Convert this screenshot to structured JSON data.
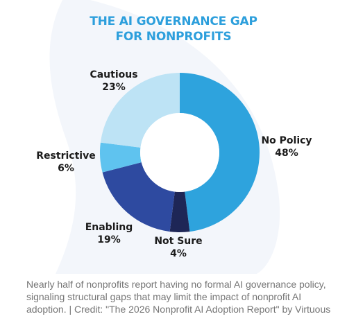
{
  "chart_data": {
    "type": "pie",
    "variant": "donut",
    "title_lines": [
      "THE AI GOVERNANCE GAP",
      "FOR NONPROFITS"
    ],
    "slices": [
      {
        "label": "No Policy",
        "value": 48,
        "display": "48%",
        "color": "#2ea3dd"
      },
      {
        "label": "Not Sure",
        "value": 4,
        "display": "4%",
        "color": "#1e2656"
      },
      {
        "label": "Enabling",
        "value": 19,
        "display": "19%",
        "color": "#2e4aa0"
      },
      {
        "label": "Restrictive",
        "value": 6,
        "display": "6%",
        "color": "#5fc3ef"
      },
      {
        "label": "Cautious",
        "value": 23,
        "display": "23%",
        "color": "#bde3f5"
      }
    ]
  },
  "caption": "Nearly half of nonprofits report having no formal AI governance policy, signaling structural gaps that may limit the impact of nonprofit AI adoption. | Credit: \"The 2026 Nonprofit AI Adoption Report\" by Virtuous",
  "colors": {
    "title": "#2d9fdc",
    "background_swoosh": "#f3f6fb",
    "caption": "#757575"
  }
}
